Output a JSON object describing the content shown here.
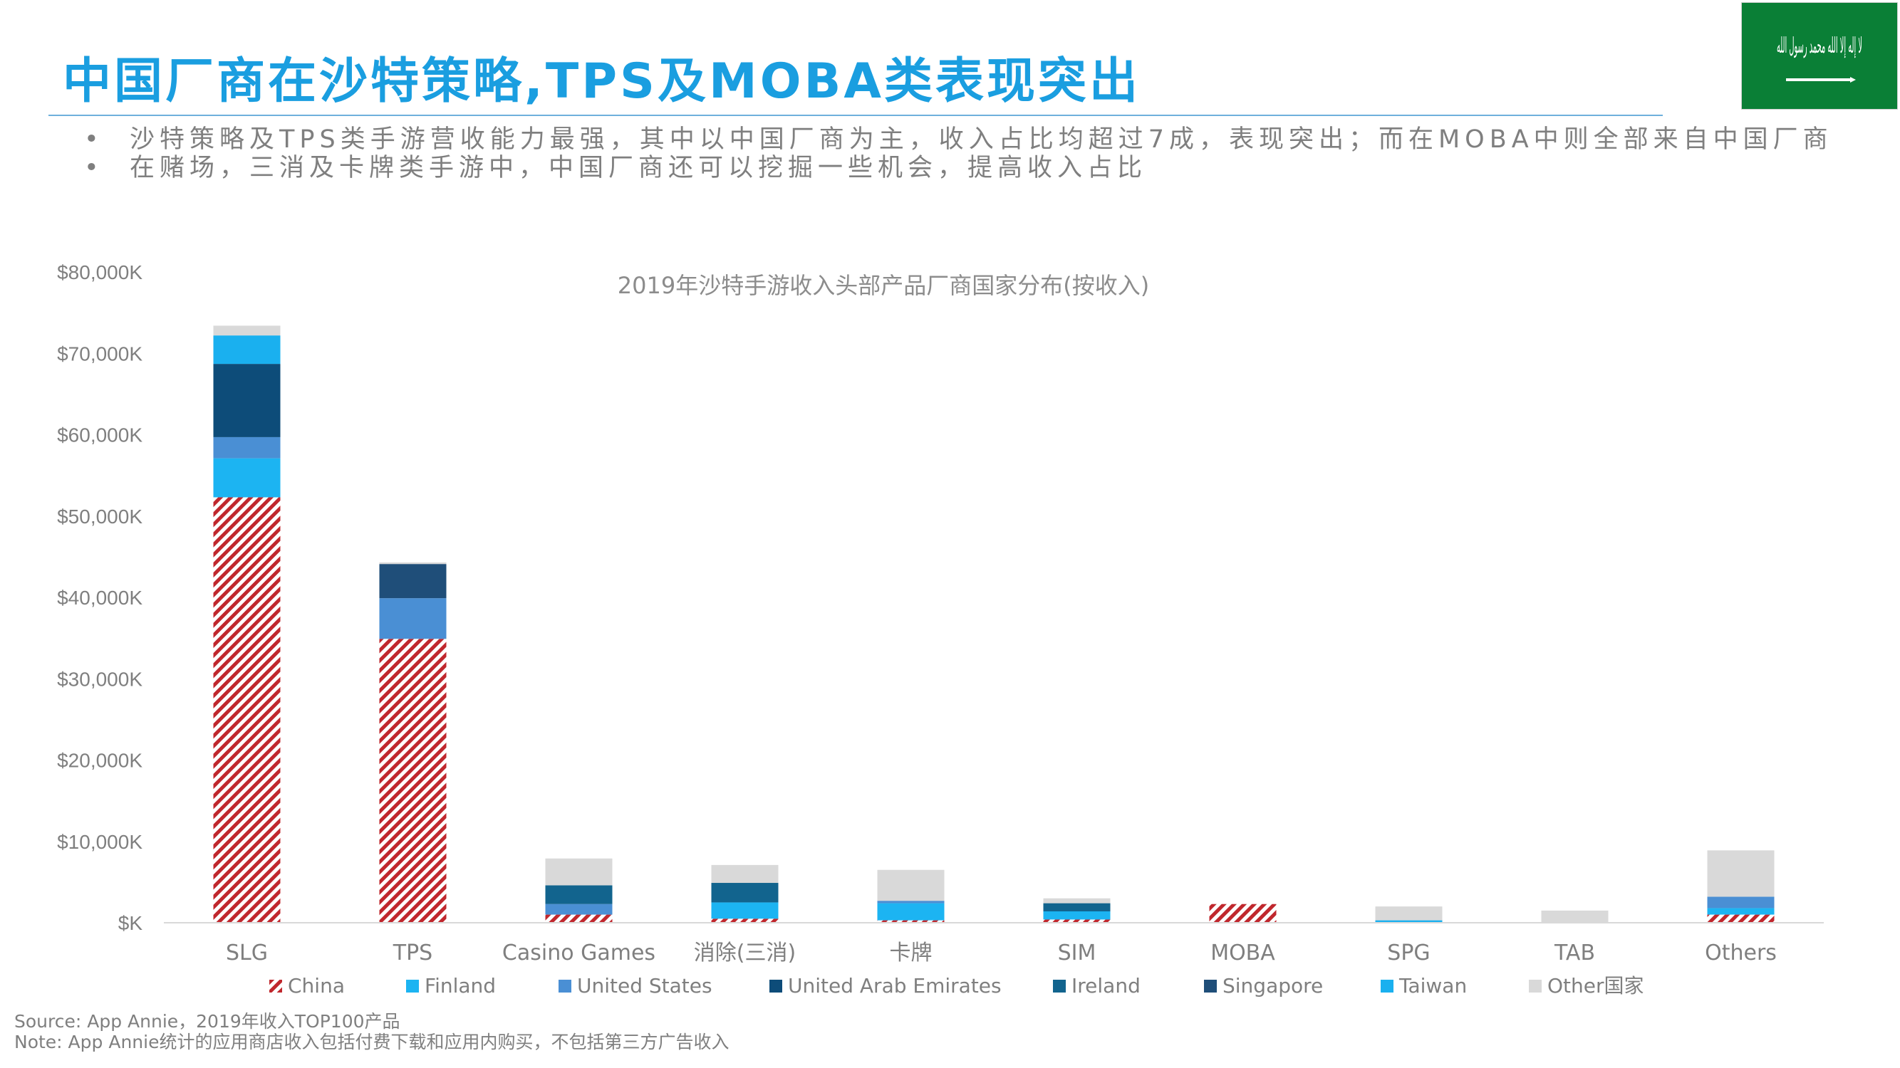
{
  "header": {
    "title": "中国厂商在沙特策略,TPS及MOBA类表现突出",
    "bullets": [
      "沙特策略及TPS类手游营收能力最强，其中以中国厂商为主，收入占比均超过7成，表现突出；而在MOBA中则全部来自中国厂商",
      "在赌场，三消及卡牌类手游中，中国厂商还可以挖掘一些机会，提高收入占比"
    ],
    "bullet_marker": "•"
  },
  "flag": {
    "script_text": "لا إله إلا الله محمد رسول الله",
    "bg_color": "#0a7f36"
  },
  "chart_data": {
    "type": "bar",
    "stacked": true,
    "title": "2019年沙特手游收入头部产品厂商国家分布(按收入)",
    "xlabel": "",
    "ylabel": "",
    "ylim": [
      0,
      80000
    ],
    "yticks": [
      0,
      10000,
      20000,
      30000,
      40000,
      50000,
      60000,
      70000,
      80000
    ],
    "ytick_labels": [
      "$K",
      "$10,000K",
      "$20,000K",
      "$30,000K",
      "$40,000K",
      "$50,000K",
      "$60,000K",
      "$70,000K",
      "$80,000K"
    ],
    "grid": false,
    "legend_position": "bottom",
    "categories": [
      "SLG",
      "TPS",
      "Casino Games",
      "消除(三消)",
      "卡牌",
      "SIM",
      "MOBA",
      "SPG",
      "TAB",
      "Others"
    ],
    "series": [
      {
        "name": "China",
        "color": "#c0272d",
        "pattern": "hatch",
        "values": [
          52300,
          34900,
          1000,
          500,
          300,
          400,
          2300,
          0,
          0,
          1000
        ]
      },
      {
        "name": "Finland",
        "color": "#1cb4f2",
        "values": [
          4800,
          0,
          0,
          2000,
          2100,
          1000,
          0,
          0,
          0,
          800
        ]
      },
      {
        "name": "United States",
        "color": "#4a8fd4",
        "values": [
          2600,
          5000,
          1300,
          0,
          300,
          0,
          0,
          0,
          0,
          1400
        ]
      },
      {
        "name": "United Arab Emirates",
        "color": "#0d4c79",
        "values": [
          9000,
          0,
          0,
          0,
          0,
          0,
          0,
          0,
          0,
          0
        ]
      },
      {
        "name": "Ireland",
        "color": "#12648e",
        "values": [
          0,
          0,
          2300,
          2400,
          0,
          1000,
          0,
          0,
          0,
          0
        ]
      },
      {
        "name": "Singapore",
        "color": "#1f4e79",
        "values": [
          0,
          4200,
          0,
          0,
          0,
          0,
          0,
          0,
          0,
          0
        ]
      },
      {
        "name": "Taiwan",
        "color": "#1ab0ef",
        "values": [
          3500,
          0,
          0,
          0,
          0,
          0,
          0,
          300,
          0,
          0
        ]
      },
      {
        "name": "Other国家",
        "color": "#d9d9d9",
        "values": [
          1200,
          200,
          3300,
          2200,
          3800,
          600,
          0,
          1700,
          1500,
          5700
        ]
      }
    ]
  },
  "footnotes": {
    "source": "Source: App Annie，2019年收入TOP100产品",
    "note": "Note: App Annie统计的应用商店收入包括付费下载和应用内购买，不包括第三方广告收入"
  }
}
